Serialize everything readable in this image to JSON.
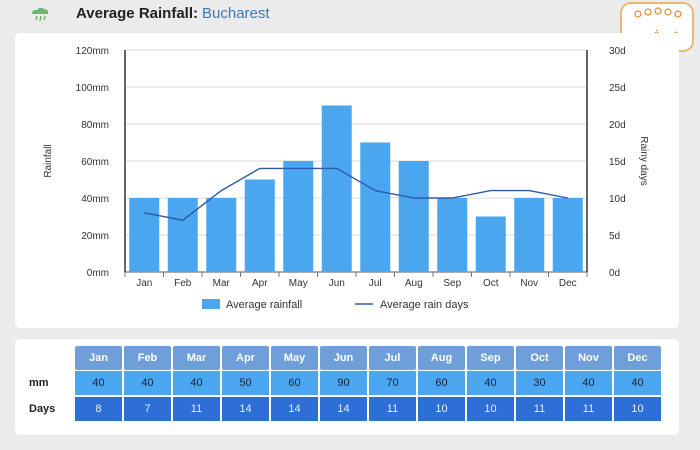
{
  "header": {
    "title": "Average Rainfall:",
    "city": "Bucharest"
  },
  "logo": {
    "text": "تیشم"
  },
  "chart_data": {
    "type": "bar",
    "categories": [
      "Jan",
      "Feb",
      "Mar",
      "Apr",
      "May",
      "Jun",
      "Jul",
      "Aug",
      "Sep",
      "Oct",
      "Nov",
      "Dec"
    ],
    "series": [
      {
        "name": "Average rainfall",
        "type": "bar",
        "axis": "left",
        "color": "#4aa6ee",
        "values": [
          40,
          40,
          40,
          50,
          60,
          90,
          70,
          60,
          40,
          30,
          40,
          40
        ]
      },
      {
        "name": "Average rain days",
        "type": "line",
        "axis": "right",
        "color": "#2e5aa8",
        "values": [
          8,
          7,
          11,
          14,
          14,
          14,
          11,
          10,
          10,
          11,
          11,
          10
        ]
      }
    ],
    "ylabel": "Rainfall",
    "y2label": "Rainy days",
    "ylim": [
      0,
      120
    ],
    "y2lim": [
      0,
      30
    ],
    "yticks": [
      "0mm",
      "20mm",
      "40mm",
      "60mm",
      "80mm",
      "100mm",
      "120mm"
    ],
    "y2ticks": [
      "0d",
      "5d",
      "10d",
      "15d",
      "20d",
      "25d",
      "30d"
    ],
    "grid": true,
    "legend": "bottom"
  },
  "table": {
    "months": [
      "Jan",
      "Feb",
      "Mar",
      "Apr",
      "May",
      "Jun",
      "Jul",
      "Aug",
      "Sep",
      "Oct",
      "Nov",
      "Dec"
    ],
    "mm_label": "mm",
    "mm": [
      "40",
      "40",
      "40",
      "50",
      "60",
      "90",
      "70",
      "60",
      "40",
      "30",
      "40",
      "40"
    ],
    "days_label": "Days",
    "days": [
      "8",
      "7",
      "11",
      "14",
      "14",
      "14",
      "11",
      "10",
      "10",
      "11",
      "11",
      "10"
    ]
  }
}
